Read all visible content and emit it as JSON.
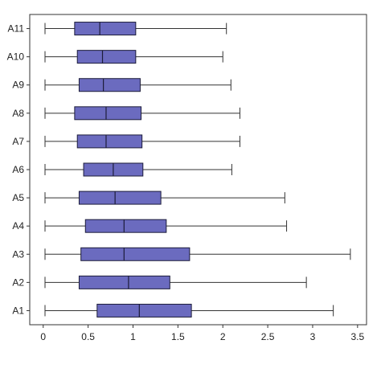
{
  "chart_data": {
    "type": "boxplot",
    "orientation": "horizontal",
    "title": "",
    "xlabel": "",
    "ylabel": "",
    "xlim": [
      -0.15,
      3.6
    ],
    "x_ticks": [
      0,
      0.5,
      1,
      1.5,
      2,
      2.5,
      3,
      3.5
    ],
    "x_tick_labels": [
      "0",
      "0.5",
      "1",
      "1.5",
      "2",
      "2.5",
      "3",
      "3.5"
    ],
    "grid": false,
    "box_fill": "#6b6bbf",
    "box_stroke": "#1c1c3a",
    "whisker_color": "#333333",
    "categories": [
      "A1",
      "A2",
      "A3",
      "A4",
      "A5",
      "A6",
      "A7",
      "A8",
      "A9",
      "A10",
      "A11"
    ],
    "boxes": [
      {
        "label": "A1",
        "min": 0.02,
        "q1": 0.6,
        "median": 1.07,
        "q3": 1.65,
        "max": 3.23
      },
      {
        "label": "A2",
        "min": 0.02,
        "q1": 0.4,
        "median": 0.95,
        "q3": 1.41,
        "max": 2.93
      },
      {
        "label": "A3",
        "min": 0.02,
        "q1": 0.42,
        "median": 0.9,
        "q3": 1.63,
        "max": 3.42
      },
      {
        "label": "A4",
        "min": 0.02,
        "q1": 0.47,
        "median": 0.9,
        "q3": 1.37,
        "max": 2.71
      },
      {
        "label": "A5",
        "min": 0.02,
        "q1": 0.4,
        "median": 0.8,
        "q3": 1.31,
        "max": 2.69
      },
      {
        "label": "A6",
        "min": 0.02,
        "q1": 0.45,
        "median": 0.78,
        "q3": 1.11,
        "max": 2.1
      },
      {
        "label": "A7",
        "min": 0.02,
        "q1": 0.38,
        "median": 0.7,
        "q3": 1.1,
        "max": 2.19
      },
      {
        "label": "A8",
        "min": 0.02,
        "q1": 0.35,
        "median": 0.7,
        "q3": 1.09,
        "max": 2.19
      },
      {
        "label": "A9",
        "min": 0.02,
        "q1": 0.4,
        "median": 0.67,
        "q3": 1.08,
        "max": 2.09
      },
      {
        "label": "A10",
        "min": 0.02,
        "q1": 0.38,
        "median": 0.66,
        "q3": 1.03,
        "max": 2.0
      },
      {
        "label": "A11",
        "min": 0.02,
        "q1": 0.35,
        "median": 0.63,
        "q3": 1.03,
        "max": 2.04
      }
    ]
  }
}
